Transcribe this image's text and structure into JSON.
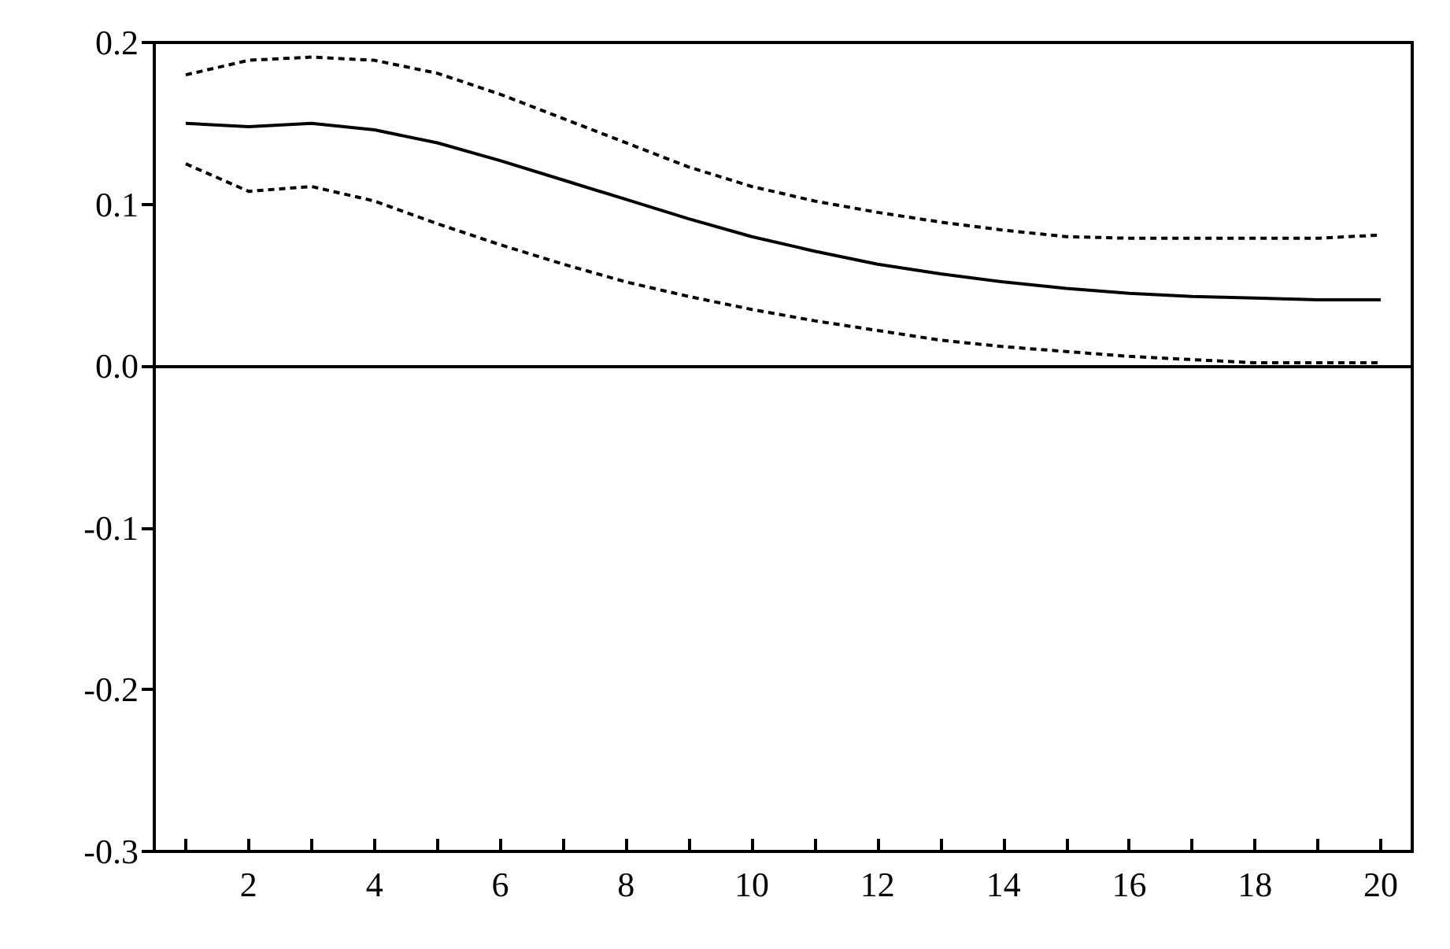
{
  "chart_data": {
    "type": "line",
    "categories": [
      null,
      "2",
      null,
      "4",
      null,
      "6",
      null,
      "8",
      null,
      "10",
      null,
      "12",
      null,
      "14",
      null,
      "16",
      null,
      "18",
      null,
      "20"
    ],
    "series": [
      {
        "color": "#000000",
        "line_style": "solid",
        "values": [
          0.15,
          0.148,
          0.15,
          0.146,
          0.138,
          0.127,
          0.115,
          0.103,
          0.091,
          0.08,
          0.071,
          0.063,
          0.057,
          0.052,
          0.048,
          0.045,
          0.043,
          0.042,
          0.041,
          0.041
        ]
      },
      {
        "color": "#000000",
        "line_style": "dashed",
        "values": [
          0.18,
          0.189,
          0.191,
          0.189,
          0.181,
          0.168,
          0.153,
          0.138,
          0.123,
          0.111,
          0.102,
          0.095,
          0.089,
          0.084,
          0.08,
          0.079,
          0.079,
          0.079,
          0.079,
          0.081
        ]
      },
      {
        "color": "#000000",
        "line_style": "dashed",
        "values": [
          0.125,
          0.108,
          0.111,
          0.102,
          0.088,
          0.075,
          0.063,
          0.052,
          0.043,
          0.035,
          0.028,
          0.022,
          0.016,
          0.012,
          0.009,
          0.006,
          0.004,
          0.002,
          0.002,
          0.002
        ]
      }
    ],
    "ylim": [
      -0.3,
      0.2
    ],
    "yticks": [
      {
        "value": -0.3,
        "label": "-0.3"
      },
      {
        "value": -0.2,
        "label": "-0.2"
      },
      {
        "value": -0.1,
        "label": "-0.1"
      },
      {
        "value": 0,
        "label": "0.0"
      },
      {
        "value": 0.1,
        "label": "0.1"
      },
      {
        "value": 0.2,
        "label": "0.2"
      }
    ],
    "ref_lines": [
      {
        "axis": "y",
        "value": 0,
        "color": "#000000",
        "line_style": "solid"
      }
    ],
    "grid": false,
    "marker": "none"
  }
}
